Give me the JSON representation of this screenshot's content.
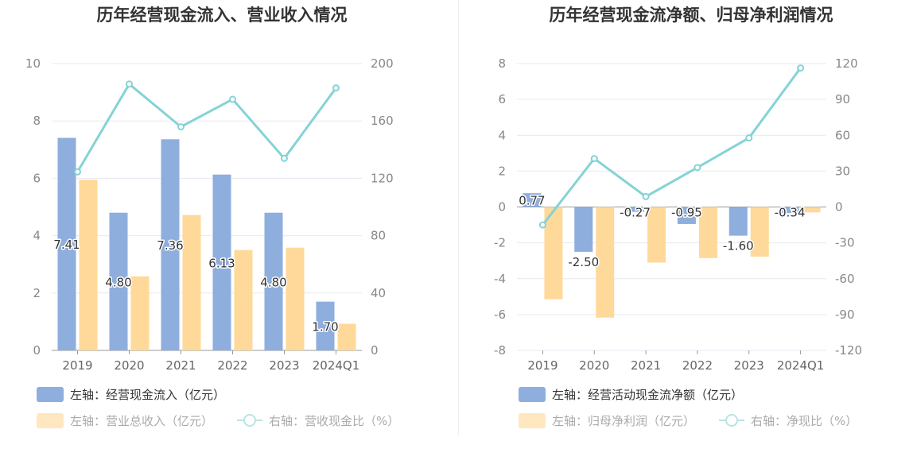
{
  "chart_data": [
    {
      "type": "bar",
      "title": "历年经营现金流入、营业收入情况",
      "categories": [
        "2019",
        "2020",
        "2021",
        "2022",
        "2023",
        "2024Q1"
      ],
      "y_left": {
        "min": 0,
        "max": 10,
        "ticks": [
          "0",
          "2",
          "4",
          "6",
          "8",
          "10"
        ]
      },
      "y_right": {
        "min": 0,
        "max": 200,
        "ticks": [
          "0",
          "40",
          "80",
          "120",
          "160",
          "200"
        ]
      },
      "grid": true,
      "legend_position": "bottom-left",
      "series": [
        {
          "name": "左轴：经营现金流入（亿元）",
          "type": "bar",
          "axis": "left",
          "color": "#8eaedd",
          "values": [
            7.41,
            4.8,
            7.36,
            6.13,
            4.8,
            1.7
          ],
          "labels": [
            "7.41",
            "4.80",
            "7.36",
            "6.13",
            "4.80",
            "1.70"
          ]
        },
        {
          "name": "左轴：营业总收入（亿元）",
          "type": "bar",
          "axis": "left",
          "color": "#ffd999",
          "values": [
            5.95,
            2.58,
            4.72,
            3.5,
            3.58,
            0.93
          ]
        },
        {
          "name": "右轴：营收现金比（%）",
          "type": "line",
          "axis": "right",
          "color": "#85d3d6",
          "values": [
            124.5,
            185.7,
            155.9,
            175.1,
            133.9,
            183.0
          ]
        }
      ]
    },
    {
      "type": "bar",
      "title": "历年经营现金流净额、归母净利润情况",
      "categories": [
        "2019",
        "2020",
        "2021",
        "2022",
        "2023",
        "2024Q1"
      ],
      "y_left": {
        "min": -8,
        "max": 8,
        "ticks": [
          "-8",
          "-6",
          "-4",
          "-2",
          "0",
          "2",
          "4",
          "6",
          "8"
        ]
      },
      "y_right": {
        "min": -120,
        "max": 120,
        "ticks": [
          "-120",
          "-90",
          "-60",
          "-30",
          "0",
          "30",
          "60",
          "90",
          "120"
        ]
      },
      "grid": true,
      "legend_position": "bottom-left",
      "series": [
        {
          "name": "左轴：经营活动现金流净额（亿元）",
          "type": "bar",
          "axis": "left",
          "color": "#8eaedd",
          "values": [
            0.77,
            -2.5,
            -0.27,
            -0.95,
            -1.6,
            -0.34
          ],
          "labels": [
            "0.77",
            "-2.50",
            "-0.27",
            "-0.95",
            "-1.60",
            "-0.34"
          ]
        },
        {
          "name": "左轴：归母净利润（亿元）",
          "type": "bar",
          "axis": "left",
          "color": "#ffd999",
          "values": [
            -5.15,
            -6.17,
            -3.1,
            -2.85,
            -2.77,
            -0.3
          ]
        },
        {
          "name": "右轴：净现比（%）",
          "type": "line",
          "axis": "right",
          "color": "#85d3d6",
          "values": [
            -15.0,
            40.5,
            8.7,
            33.0,
            57.8,
            116.3
          ]
        }
      ]
    }
  ]
}
